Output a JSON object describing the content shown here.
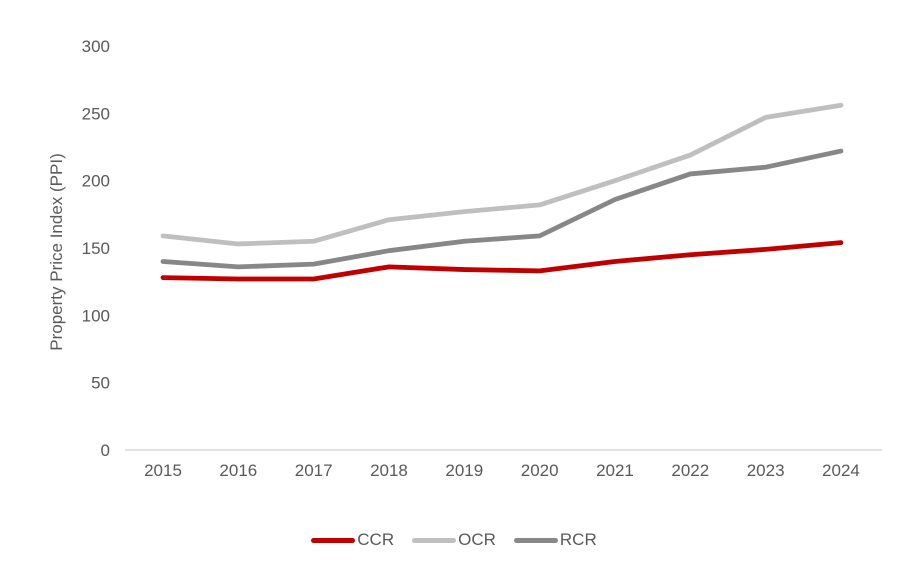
{
  "chart_data": {
    "type": "line",
    "title": "",
    "xlabel": "",
    "ylabel": "Property Price Index (PPI)",
    "categories": [
      "2015",
      "2016",
      "2017",
      "2018",
      "2019",
      "2020",
      "2021",
      "2022",
      "2023",
      "2024"
    ],
    "series": [
      {
        "name": "CCR",
        "color": "#C00000",
        "values": [
          128,
          127,
          127,
          136,
          134,
          133,
          140,
          145,
          149,
          154
        ]
      },
      {
        "name": "OCR",
        "color": "#BFBFBF",
        "values": [
          159,
          153,
          155,
          171,
          177,
          182,
          200,
          219,
          247,
          256
        ]
      },
      {
        "name": "RCR",
        "color": "#878787",
        "values": [
          140,
          136,
          138,
          148,
          155,
          159,
          186,
          205,
          210,
          222
        ]
      }
    ],
    "ylim": [
      0,
      300
    ],
    "yticks": [
      0,
      50,
      100,
      150,
      200,
      250,
      300
    ],
    "grid": false,
    "legend_position": "bottom",
    "axis_color": "#D9D9D9",
    "label_color": "#595959",
    "background_color": "#FFFFFF"
  }
}
